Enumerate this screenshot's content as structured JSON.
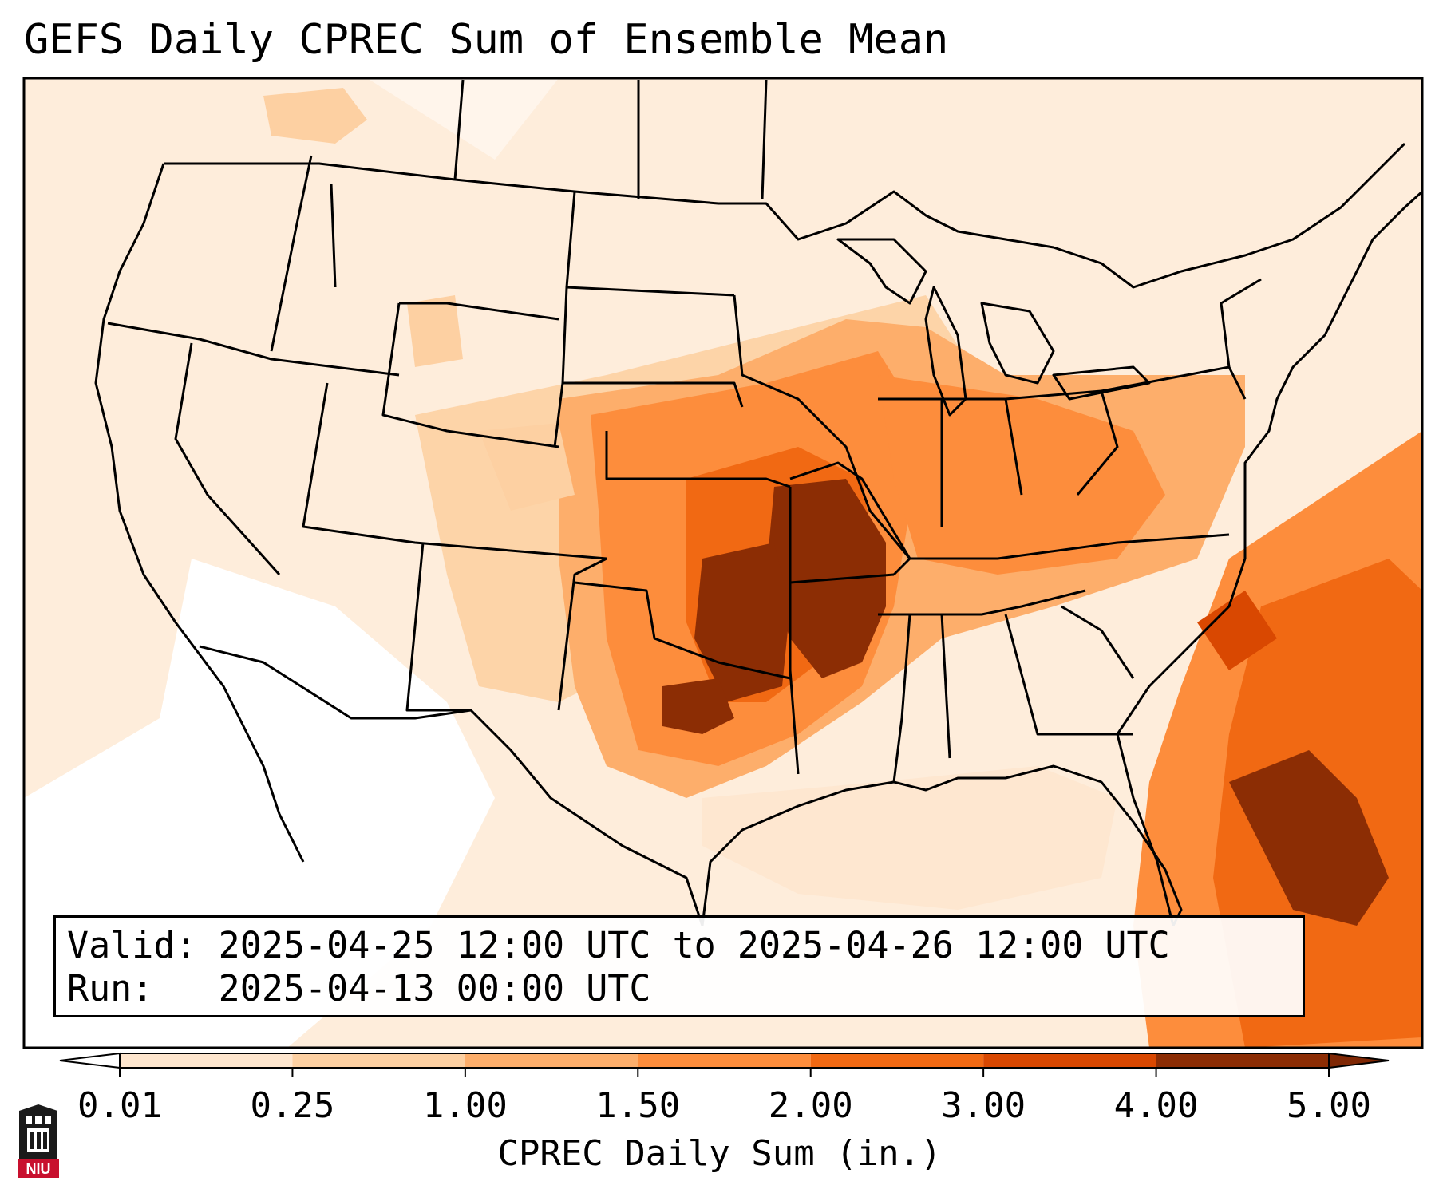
{
  "title": "GEFS Daily CPREC Sum of Ensemble Mean",
  "info": {
    "valid_line": "Valid: 2025-04-25 12:00 UTC to 2025-04-26 12:00 UTC",
    "run_line": "Run:   2025-04-13 00:00 UTC"
  },
  "colorbar": {
    "label": "CPREC Daily Sum (in.)",
    "ticks": [
      "0.01",
      "0.25",
      "1.00",
      "1.50",
      "2.00",
      "3.00",
      "4.00",
      "5.00"
    ],
    "colors": [
      "#fff5eb",
      "#fee6ce",
      "#fdd0a2",
      "#fdae6b",
      "#fd8d3c",
      "#f16913",
      "#d94801",
      "#8c2d04"
    ],
    "extend_low_color": "#ffffff",
    "extend_high_color": "#7f2704"
  },
  "logo": {
    "text": "NIU",
    "color": "#c8102e"
  },
  "icons": {
    "logo": "university-tower-icon"
  }
}
